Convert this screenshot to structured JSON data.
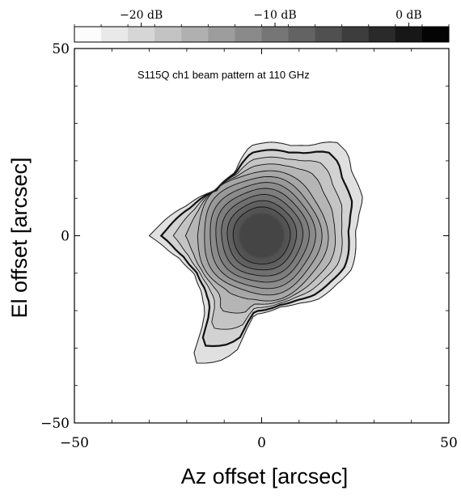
{
  "chart_data": {
    "type": "heatmap",
    "title": "S115Q ch1 beam pattern at 110 GHz",
    "xlabel": "Az offset  [arcsec]",
    "ylabel": "El offset  [arcsec]",
    "xlim": [
      -50,
      50
    ],
    "ylim": [
      -50,
      50
    ],
    "x_ticks": [
      -50,
      0,
      50
    ],
    "y_ticks": [
      -50,
      0,
      50
    ],
    "x_tick_labels": [
      "-50",
      "0",
      "50"
    ],
    "y_tick_labels": [
      "-50",
      "0",
      "50"
    ],
    "colorbar": {
      "range_db": [
        -25,
        3
      ],
      "ticks_db": [
        -20,
        -10,
        0
      ],
      "tick_labels": [
        "−20 dB",
        "−10 dB",
        "0 dB"
      ],
      "levels": 14,
      "colormap": "white-to-black grayscale"
    },
    "beam": {
      "peak_db": 0,
      "peak_center": [
        0,
        0
      ],
      "contour_levels_db": [
        -2,
        -4,
        -6,
        -8,
        -10,
        -12,
        -14,
        -16,
        -18,
        -20,
        -22
      ]
    }
  }
}
